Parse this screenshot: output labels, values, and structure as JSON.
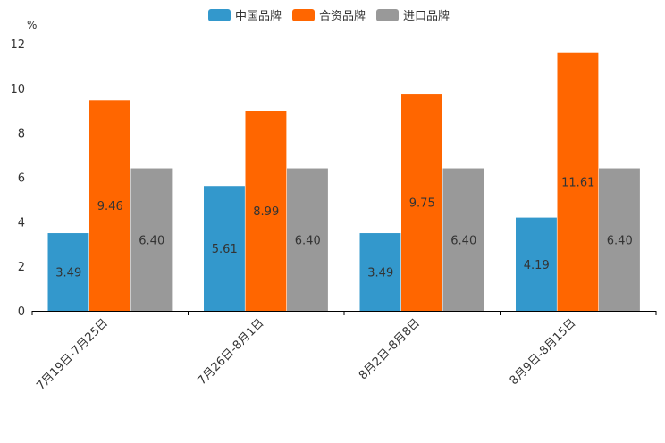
{
  "chart_data": {
    "type": "bar",
    "unit_label": "%",
    "categories": [
      "7月19日-7月25日",
      "7月26日-8月1日",
      "8月2日-8月8日",
      "8月9日-8月15日"
    ],
    "series": [
      {
        "name": "中国品牌",
        "color": "#3398cc",
        "values": [
          3.49,
          5.61,
          3.49,
          4.19
        ]
      },
      {
        "name": "合资品牌",
        "color": "#ff6600",
        "values": [
          9.46,
          8.99,
          9.75,
          11.61
        ]
      },
      {
        "name": "进口品牌",
        "color": "#999999",
        "values": [
          6.4,
          6.4,
          6.4,
          6.4
        ]
      }
    ],
    "ylim": [
      0,
      12
    ],
    "yticks": [
      0,
      2,
      4,
      6,
      8,
      10,
      12
    ],
    "legend_position": "top-center",
    "grid": false
  }
}
